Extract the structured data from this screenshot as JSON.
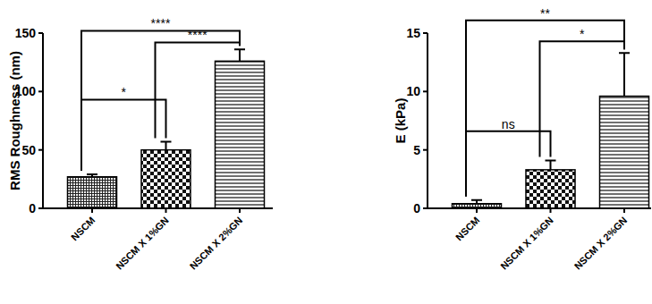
{
  "chart_data": [
    {
      "type": "bar",
      "y_label": "RMS Roughness (nm)",
      "categories": [
        "NSCM",
        "NSCM X 1%GN",
        "NSCM X 2%GN"
      ],
      "values": [
        27,
        50,
        126
      ],
      "errors": [
        2,
        7,
        10
      ],
      "ylim": [
        0,
        150
      ],
      "yticks": [
        0,
        50,
        100,
        150
      ],
      "annotations": [
        {
          "from": 0,
          "to": 2,
          "y": 152,
          "label": "****"
        },
        {
          "from": 1,
          "to": 2,
          "y": 142,
          "label": "****"
        },
        {
          "from": 0,
          "to": 1,
          "y": 93,
          "label": "*"
        }
      ]
    },
    {
      "type": "bar",
      "y_label": "E (kPa)",
      "categories": [
        "NSCM",
        "NSCM X 1%GN",
        "NSCM X 2%GN"
      ],
      "values": [
        0.4,
        3.3,
        9.6
      ],
      "errors": [
        0.3,
        0.8,
        3.7
      ],
      "ylim": [
        0,
        15
      ],
      "yticks": [
        0,
        5,
        10,
        15
      ],
      "annotations": [
        {
          "from": 0,
          "to": 2,
          "y": 16.1,
          "label": "**"
        },
        {
          "from": 1,
          "to": 2,
          "y": 14.3,
          "label": "*"
        },
        {
          "from": 0,
          "to": 1,
          "y": 6.6,
          "label": "ns"
        }
      ]
    }
  ]
}
